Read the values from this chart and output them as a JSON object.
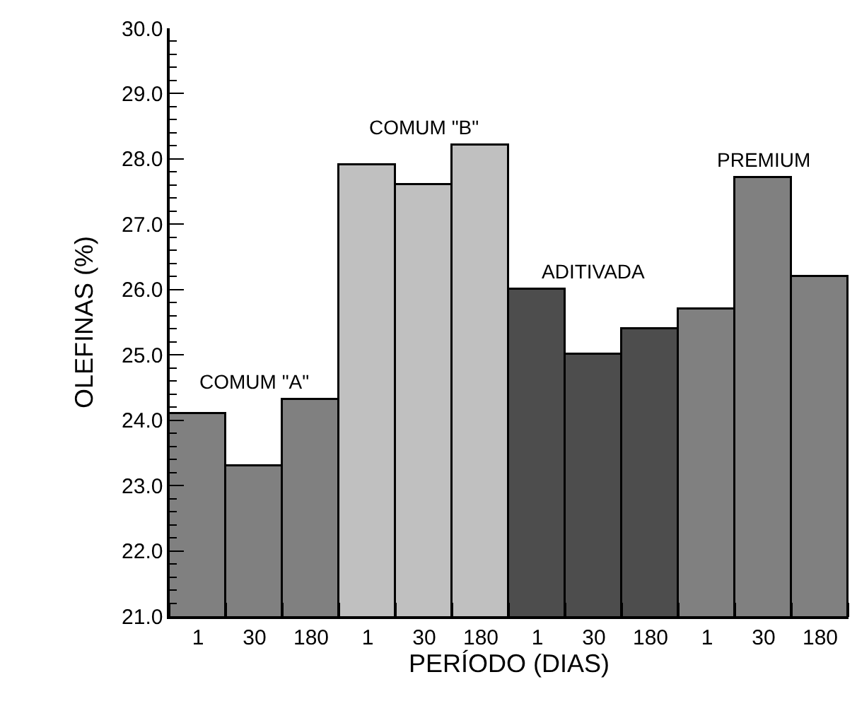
{
  "chart_data": {
    "type": "bar",
    "xlabel": "PERÍODO (DIAS)",
    "ylabel": "OLEFINAS (%)",
    "categories": [
      "1",
      "30",
      "180",
      "1",
      "30",
      "180",
      "1",
      "30",
      "180",
      "1",
      "30",
      "180"
    ],
    "values": [
      24.1,
      23.3,
      24.3,
      27.9,
      27.6,
      28.2,
      26.0,
      25.0,
      25.4,
      25.7,
      27.7,
      26.2
    ],
    "colors": [
      "#808080",
      "#808080",
      "#808080",
      "#c0c0c0",
      "#c0c0c0",
      "#c0c0c0",
      "#4d4d4d",
      "#4d4d4d",
      "#4d4d4d",
      "#808080",
      "#808080",
      "#808080"
    ],
    "annotations": [
      "COMUM \"A\"",
      "COMUM \"B\"",
      "ADITIVADA",
      "PREMIUM"
    ],
    "ylim": [
      21,
      30
    ],
    "yticks": [
      {
        "value": 21,
        "label": "21.0"
      },
      {
        "value": 22,
        "label": "22.0"
      },
      {
        "value": 23,
        "label": "23.0"
      },
      {
        "value": 24,
        "label": "24.0"
      },
      {
        "value": 25,
        "label": "25.0"
      },
      {
        "value": 26,
        "label": "26.0"
      },
      {
        "value": 27,
        "label": "27.0"
      },
      {
        "value": 28,
        "label": "28.0"
      },
      {
        "value": 29,
        "label": "29.0"
      },
      {
        "value": 30,
        "label": "30.0"
      }
    ]
  }
}
